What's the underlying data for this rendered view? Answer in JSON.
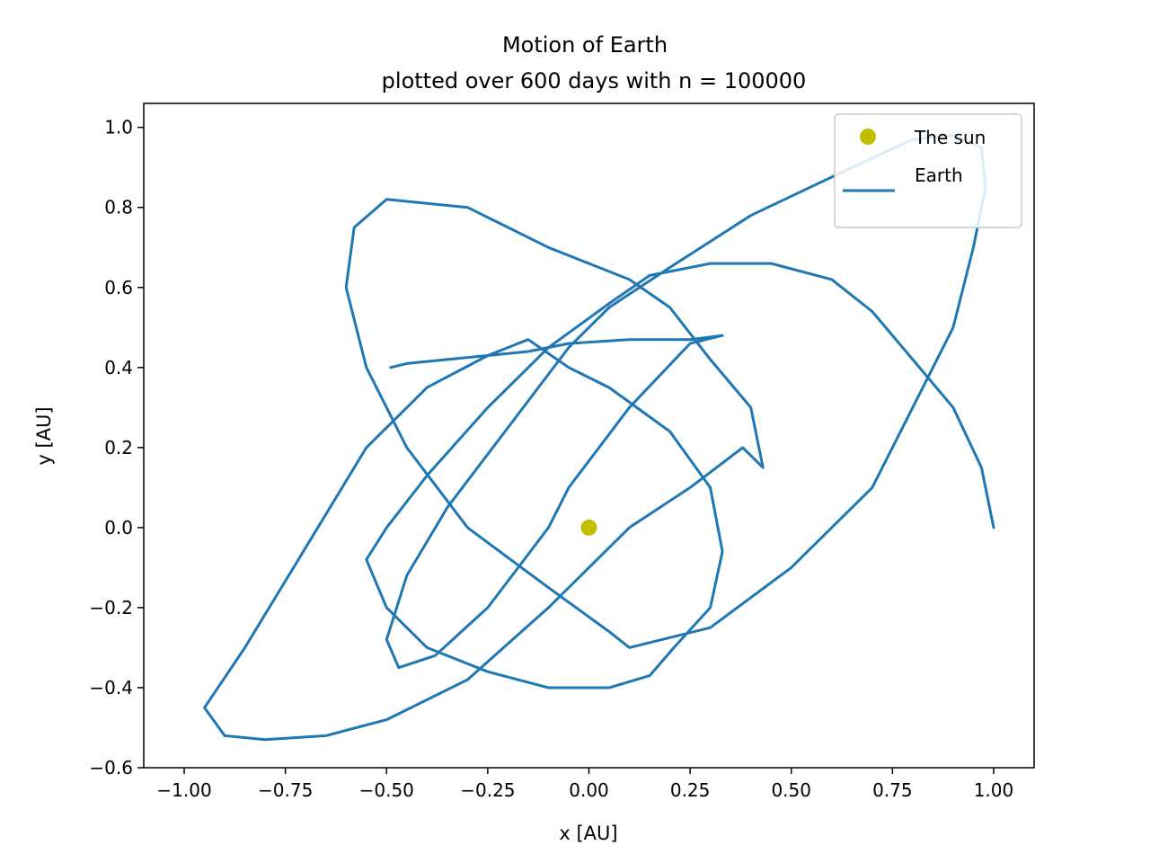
{
  "chart_data": {
    "type": "line",
    "title": "Motion of Earth",
    "subtitle": "plotted over 600 days with n = 100000",
    "xlabel": "x [AU]",
    "ylabel": "y [AU]",
    "xlim": [
      -1.1,
      1.1
    ],
    "ylim": [
      -0.6,
      1.06
    ],
    "xticks": [
      -1.0,
      -0.75,
      -0.5,
      -0.25,
      0.0,
      0.25,
      0.5,
      0.75,
      1.0
    ],
    "xtick_labels": [
      "−1.00",
      "−0.75",
      "−0.50",
      "−0.25",
      "0.00",
      "0.25",
      "0.50",
      "0.75",
      "1.00"
    ],
    "yticks": [
      -0.6,
      -0.4,
      -0.2,
      0.0,
      0.2,
      0.4,
      0.6,
      0.8,
      1.0
    ],
    "ytick_labels": [
      "−0.6",
      "−0.4",
      "−0.2",
      "0.0",
      "0.2",
      "0.4",
      "0.6",
      "0.8",
      "1.0"
    ],
    "grid": false,
    "legend": {
      "placement": "top-right",
      "entries": [
        "The sun",
        "Earth"
      ]
    },
    "series": [
      {
        "name": "The sun",
        "kind": "marker",
        "color": "#bfbf00",
        "x": [
          0.0
        ],
        "y": [
          0.0
        ]
      },
      {
        "name": "Earth",
        "kind": "line",
        "color": "#1f77b4",
        "x": [
          1.0,
          0.97,
          0.9,
          0.8,
          0.7,
          0.6,
          0.45,
          0.3,
          0.15,
          0.05,
          -0.1,
          -0.25,
          -0.4,
          -0.5,
          -0.55,
          -0.5,
          -0.4,
          -0.25,
          -0.1,
          0.05,
          0.15,
          0.21,
          0.3,
          0.33,
          0.3,
          0.2,
          0.05,
          -0.05,
          -0.15,
          -0.25,
          -0.4,
          -0.55,
          -0.7,
          -0.85,
          -0.95,
          -0.9,
          -0.8,
          -0.65,
          -0.5,
          -0.3,
          -0.1,
          0.1,
          0.25,
          0.38,
          0.43,
          0.4,
          0.3,
          0.2,
          0.1,
          -0.1,
          -0.3,
          -0.5,
          -0.58,
          -0.6,
          -0.55,
          -0.45,
          -0.3,
          -0.1,
          0.05,
          0.1,
          0.3,
          0.5,
          0.7,
          0.8,
          0.9,
          0.95,
          0.98,
          0.97,
          0.9,
          0.8,
          0.65,
          0.4,
          0.2,
          0.05,
          -0.05,
          -0.2,
          -0.35,
          -0.45,
          -0.5,
          -0.47,
          -0.38,
          -0.25,
          -0.1,
          -0.05,
          0.1,
          0.25,
          0.33,
          0.25,
          0.1,
          -0.05,
          -0.15,
          -0.25,
          -0.35,
          -0.45,
          -0.49
        ],
        "y": [
          0.0,
          0.15,
          0.3,
          0.42,
          0.54,
          0.62,
          0.66,
          0.66,
          0.63,
          0.56,
          0.45,
          0.3,
          0.13,
          0.0,
          -0.08,
          -0.2,
          -0.3,
          -0.36,
          -0.4,
          -0.4,
          -0.37,
          -0.3,
          -0.2,
          -0.06,
          0.1,
          0.24,
          0.35,
          0.4,
          0.47,
          0.43,
          0.35,
          0.2,
          -0.05,
          -0.3,
          -0.45,
          -0.52,
          -0.53,
          -0.52,
          -0.48,
          -0.38,
          -0.2,
          0.0,
          0.1,
          0.2,
          0.15,
          0.3,
          0.42,
          0.55,
          0.62,
          0.7,
          0.8,
          0.82,
          0.75,
          0.6,
          0.4,
          0.2,
          0.0,
          -0.15,
          -0.26,
          -0.3,
          -0.25,
          -0.1,
          0.1,
          0.3,
          0.5,
          0.7,
          0.85,
          0.95,
          0.98,
          0.97,
          0.9,
          0.78,
          0.65,
          0.55,
          0.45,
          0.25,
          0.05,
          -0.12,
          -0.28,
          -0.35,
          -0.32,
          -0.2,
          0.0,
          0.1,
          0.3,
          0.46,
          0.48,
          0.47,
          0.47,
          0.46,
          0.44,
          0.43,
          0.42,
          0.41,
          0.4
        ]
      }
    ]
  }
}
